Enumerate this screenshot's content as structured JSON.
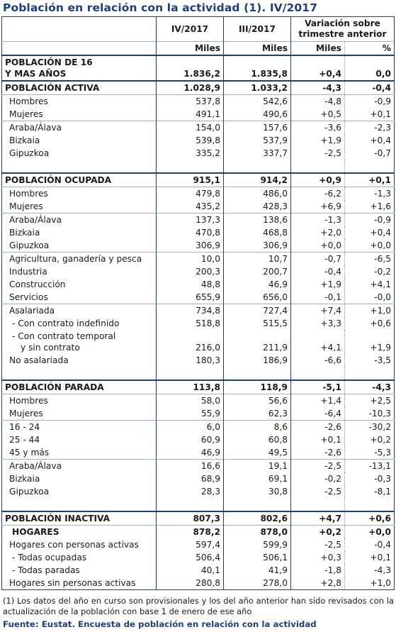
{
  "title": "Población en relación con la actividad (1). IV/2017",
  "columns": {
    "c1": "IV/2017",
    "c2": "III/2017",
    "c3": "Variación sobre trimestre anterior",
    "c3_line1": "Variación sobre",
    "c3_line2": "trimestre anterior",
    "unit1": "Miles",
    "unit2": "Miles",
    "unit3": "Miles",
    "unit4": "%"
  },
  "rows": [
    {
      "label": "POBLACIÓN DE 16",
      "label2": "Y MAS AÑOS",
      "v1": "1.836,2",
      "v2": "1.835,8",
      "v3": "+0,4",
      "v4": "0,0"
    },
    {
      "label": "POBLACIÓN ACTIVA",
      "v1": "1.028,9",
      "v2": "1.033,2",
      "v3": "-4,3",
      "v4": "-0,4"
    },
    {
      "label": "Hombres",
      "v1": "537,8",
      "v2": "542,6",
      "v3": "-4,8",
      "v4": "-0,9"
    },
    {
      "label": "Mujeres",
      "v1": "491,1",
      "v2": "490,6",
      "v3": "+0,5",
      "v4": "+0,1"
    },
    {
      "label": "Araba/Álava",
      "v1": "154,0",
      "v2": "157,6",
      "v3": "-3,6",
      "v4": "-2,3"
    },
    {
      "label": "Bizkaia",
      "v1": "539,8",
      "v2": "537,9",
      "v3": "+1,9",
      "v4": "+0,4"
    },
    {
      "label": "Gipuzkoa",
      "v1": "335,2",
      "v2": "337,7",
      "v3": "-2,5",
      "v4": "-0,7"
    },
    {
      "label": "POBLACIÓN OCUPADA",
      "v1": "915,1",
      "v2": "914,2",
      "v3": "+0,9",
      "v4": "+0,1"
    },
    {
      "label": "Hombres",
      "v1": "479,8",
      "v2": "486,0",
      "v3": "-6,2",
      "v4": "-1,3"
    },
    {
      "label": "Mujeres",
      "v1": "435,2",
      "v2": "428,3",
      "v3": "+6,9",
      "v4": "+1,6"
    },
    {
      "label": "Araba/Álava",
      "v1": "137,3",
      "v2": "138,6",
      "v3": "-1,3",
      "v4": "-0,9"
    },
    {
      "label": "Bizkaia",
      "v1": "470,8",
      "v2": "468,8",
      "v3": "+2,0",
      "v4": "+0,4"
    },
    {
      "label": "Gipuzkoa",
      "v1": "306,9",
      "v2": "306,9",
      "v3": "+0,0",
      "v4": "+0,0"
    },
    {
      "label": "Agricultura, ganadería y pesca",
      "v1": "10,0",
      "v2": "10,7",
      "v3": "-0,7",
      "v4": "-6,5"
    },
    {
      "label": "Industria",
      "v1": "200,3",
      "v2": "200,7",
      "v3": "-0,4",
      "v4": "-0,2"
    },
    {
      "label": "Construcción",
      "v1": "48,8",
      "v2": "46,9",
      "v3": "+1,9",
      "v4": "+4,1"
    },
    {
      "label": "Servicios",
      "v1": "655,9",
      "v2": "656,0",
      "v3": "-0,1",
      "v4": "-0,0"
    },
    {
      "label": "Asalariada",
      "v1": "734,8",
      "v2": "727,4",
      "v3": "+7,4",
      "v4": "+1,0"
    },
    {
      "label": "- Con contrato indefinido",
      "v1": "518,8",
      "v2": "515,5",
      "v3": "+3,3",
      "v4": "+0,6"
    },
    {
      "label": "- Con contrato temporal",
      "label2": "y sin contrato",
      "v1": "216,0",
      "v2": "211,9",
      "v3": "+4,1",
      "v4": "+1,9"
    },
    {
      "label": "No asalariada",
      "v1": "180,3",
      "v2": "186,9",
      "v3": "-6,6",
      "v4": "-3,5"
    },
    {
      "label": "POBLACIÓN PARADA",
      "v1": "113,8",
      "v2": "118,9",
      "v3": "-5,1",
      "v4": "-4,3"
    },
    {
      "label": "Hombres",
      "v1": "58,0",
      "v2": "56,6",
      "v3": "+1,4",
      "v4": "+2,5"
    },
    {
      "label": "Mujeres",
      "v1": "55,9",
      "v2": "62,3",
      "v3": "-6,4",
      "v4": "-10,3"
    },
    {
      "label": "16 - 24",
      "v1": "6,0",
      "v2": "8,6",
      "v3": "-2,6",
      "v4": "-30,2"
    },
    {
      "label": "25 - 44",
      "v1": "60,9",
      "v2": "60,8",
      "v3": "+0,1",
      "v4": "+0,2"
    },
    {
      "label": "45 y más",
      "v1": "46,9",
      "v2": "49,5",
      "v3": "-2,6",
      "v4": "-5,3"
    },
    {
      "label": "Araba/Álava",
      "v1": "16,6",
      "v2": "19,1",
      "v3": "-2,5",
      "v4": "-13,1"
    },
    {
      "label": "Bizkaia",
      "v1": "68,9",
      "v2": "69,1",
      "v3": "-0,2",
      "v4": "-0,3"
    },
    {
      "label": "Gipuzkoa",
      "v1": "28,3",
      "v2": "30,8",
      "v3": "-2,5",
      "v4": "-8,1"
    },
    {
      "label": "POBLACIÓN INACTIVA",
      "v1": "807,3",
      "v2": "802,6",
      "v3": "+4,7",
      "v4": "+0,6"
    },
    {
      "label": "HOGARES",
      "v1": "878,2",
      "v2": "878,0",
      "v3": "+0,2",
      "v4": "+0,0"
    },
    {
      "label": "Hogares con personas activas",
      "v1": "597,4",
      "v2": "599,9",
      "v3": "-2,5",
      "v4": "-0,4"
    },
    {
      "label": "- Todas ocupadas",
      "v1": "506,4",
      "v2": "506,1",
      "v3": "+0,3",
      "v4": "+0,1"
    },
    {
      "label": "- Todas paradas",
      "v1": "40,1",
      "v2": "41,9",
      "v3": "-1,8",
      "v4": "-4,3"
    },
    {
      "label": "Hogares sin personas activas",
      "v1": "280,8",
      "v2": "278,0",
      "v3": "+2,8",
      "v4": "+1,0"
    }
  ],
  "footnote": "(1) Los datos del año en curso son provisionales y los del año anterior han sido revisados con la actualización de la población con base 1 de enero de ese año",
  "source": "Fuente: Eustat. Encuesta de población en relación con la actividad",
  "colors": {
    "accent": "#1f3f7a",
    "rule": "#9fb1d1"
  }
}
